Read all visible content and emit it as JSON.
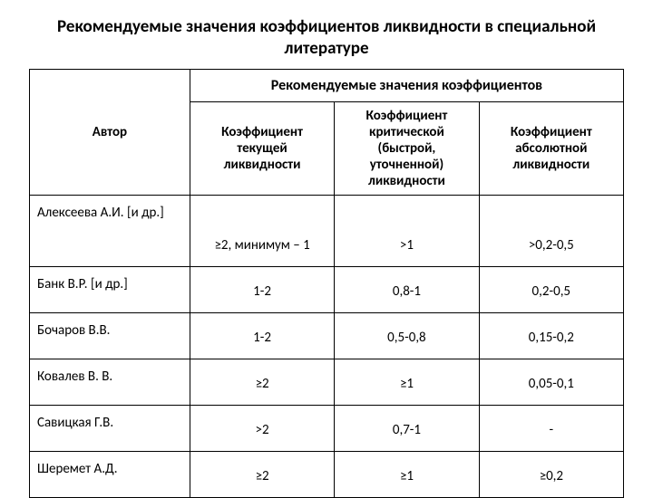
{
  "title": "Рекомендуемые значения коэффициентов ликвидности в специальной литературе",
  "table": {
    "type": "table",
    "supertitle": "Рекомендуемые значения коэффициентов",
    "headers": {
      "author": "Автор",
      "c1": "Коэффициент текущей ликвидности",
      "c2": "Коэффициент критической (быстрой, уточненной) ликвидности",
      "c3": "Коэффициент абсолютной ликвидности"
    },
    "rows": [
      {
        "author": "Алексеева А.И. [и др.]",
        "c1": "≥2, минимум – 1",
        "c2": ">1",
        "c3": ">0,2-0,5"
      },
      {
        "author": "Банк В.Р. [и др.]",
        "c1": "1-2",
        "c2": "0,8-1",
        "c3": "0,2-0,5"
      },
      {
        "author": "Бочаров В.В.",
        "c1": "1-2",
        "c2": "0,5-0,8",
        "c3": "0,15-0,2"
      },
      {
        "author": "Ковалев В. В.",
        "c1": "≥2",
        "c2": "≥1",
        "c3": "0,05-0,1"
      },
      {
        "author": "Савицкая Г.В.",
        "c1": ">2",
        "c2": "0,7-1",
        "c3": "-"
      },
      {
        "author": "Шеремет А.Д.",
        "c1": "≥2",
        "c2": "≥1",
        "c3": "≥0,2"
      }
    ],
    "border_color": "#000000",
    "background_color": "#ffffff",
    "title_fontsize": 19,
    "cell_fontsize": 15
  }
}
